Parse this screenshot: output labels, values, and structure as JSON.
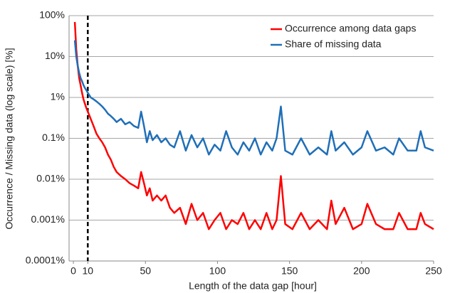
{
  "chart_data": {
    "type": "line",
    "xlabel": "Length of the data gap [hour]",
    "ylabel": "Occurrence / Missing data (log scale) [%]",
    "x": [
      1,
      2,
      3,
      4,
      5,
      6,
      7,
      8,
      9,
      10,
      12,
      14,
      16,
      18,
      20,
      22,
      24,
      26,
      28,
      30,
      33,
      36,
      39,
      42,
      45,
      47,
      49,
      51,
      53,
      55,
      58,
      61,
      64,
      67,
      70,
      74,
      78,
      82,
      86,
      90,
      94,
      98,
      102,
      106,
      110,
      114,
      118,
      122,
      126,
      130,
      134,
      138,
      141,
      144,
      147,
      152,
      158,
      164,
      170,
      176,
      179,
      182,
      188,
      194,
      200,
      204,
      210,
      216,
      222,
      226,
      232,
      238,
      241,
      244,
      250
    ],
    "series": [
      {
        "name": "Occurrence among data gaps",
        "color": "#ff0000",
        "values": [
          70,
          15,
          6,
          3,
          2,
          1.3,
          0.9,
          0.7,
          0.55,
          0.45,
          0.3,
          0.2,
          0.13,
          0.1,
          0.08,
          0.06,
          0.04,
          0.03,
          0.02,
          0.015,
          0.012,
          0.01,
          0.008,
          0.007,
          0.006,
          0.015,
          0.008,
          0.004,
          0.006,
          0.003,
          0.004,
          0.003,
          0.004,
          0.002,
          0.0015,
          0.002,
          0.0008,
          0.0025,
          0.001,
          0.0015,
          0.0006,
          0.001,
          0.0015,
          0.0006,
          0.001,
          0.0008,
          0.0015,
          0.0006,
          0.001,
          0.0006,
          0.0015,
          0.0006,
          0.001,
          0.012,
          0.0008,
          0.0006,
          0.0015,
          0.0006,
          0.001,
          0.0006,
          0.003,
          0.0008,
          0.002,
          0.0006,
          0.0008,
          0.0025,
          0.0008,
          0.0006,
          0.0006,
          0.0015,
          0.0006,
          0.0006,
          0.0015,
          0.0008,
          0.0006
        ]
      },
      {
        "name": "Share of missing data",
        "color": "#1f6fb8",
        "values": [
          25,
          10,
          6,
          4,
          3,
          2.5,
          2,
          1.7,
          1.5,
          1.3,
          1,
          0.9,
          0.8,
          0.7,
          0.6,
          0.5,
          0.4,
          0.35,
          0.3,
          0.25,
          0.3,
          0.22,
          0.25,
          0.2,
          0.18,
          0.45,
          0.2,
          0.08,
          0.15,
          0.09,
          0.12,
          0.08,
          0.1,
          0.07,
          0.06,
          0.15,
          0.05,
          0.12,
          0.06,
          0.1,
          0.04,
          0.07,
          0.05,
          0.15,
          0.06,
          0.04,
          0.08,
          0.05,
          0.1,
          0.04,
          0.08,
          0.05,
          0.1,
          0.6,
          0.05,
          0.04,
          0.1,
          0.04,
          0.06,
          0.04,
          0.15,
          0.05,
          0.08,
          0.04,
          0.06,
          0.15,
          0.05,
          0.06,
          0.04,
          0.1,
          0.05,
          0.05,
          0.15,
          0.06,
          0.05
        ]
      }
    ],
    "xlim": [
      -3,
      250
    ],
    "xticks": [
      0,
      10,
      50,
      100,
      150,
      200,
      250
    ],
    "ylim": [
      0.0001,
      100
    ],
    "ylog": true,
    "yticks": [
      {
        "value": 0.0001,
        "label": "0.0001%"
      },
      {
        "value": 0.001,
        "label": "0.001%"
      },
      {
        "value": 0.01,
        "label": "0.01%"
      },
      {
        "value": 0.1,
        "label": "0.1%"
      },
      {
        "value": 1,
        "label": "1%"
      },
      {
        "value": 10,
        "label": "10%"
      },
      {
        "value": 100,
        "label": "100%"
      }
    ],
    "grid": true,
    "legend": "top-right",
    "vline": 10
  }
}
